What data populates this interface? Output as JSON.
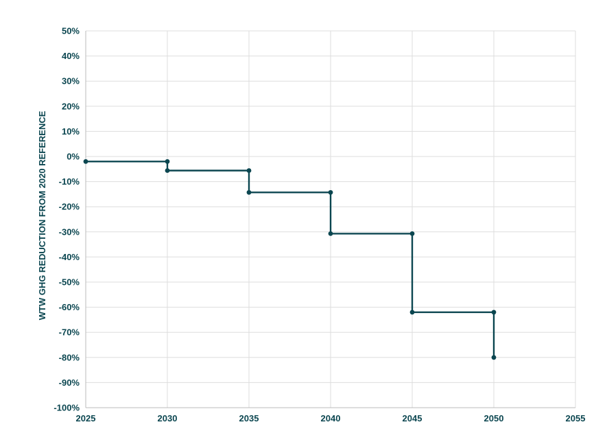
{
  "chart_data": {
    "type": "line",
    "title": "",
    "xlabel": "",
    "ylabel": "WTW GHG REDUCTION FROM 2020 REFERENCE",
    "xlim": [
      2025,
      2055
    ],
    "ylim": [
      -100,
      50
    ],
    "x_ticks": [
      2025,
      2030,
      2035,
      2040,
      2045,
      2050,
      2055
    ],
    "x_tick_labels": [
      "2025",
      "2030",
      "2035",
      "2040",
      "2045",
      "2050",
      "2055"
    ],
    "y_ticks": [
      50,
      40,
      30,
      20,
      10,
      0,
      -10,
      -20,
      -30,
      -40,
      -50,
      -60,
      -70,
      -80,
      -90,
      -100
    ],
    "y_tick_labels": [
      "50%",
      "40%",
      "30%",
      "20%",
      "10%",
      "0%",
      "-10%",
      "-20%",
      "-30%",
      "-40%",
      "-50%",
      "-60%",
      "-70%",
      "-80%",
      "-90%",
      "-100%"
    ],
    "grid": true,
    "series": [
      {
        "x": [
          2025,
          2030,
          2030,
          2035,
          2035,
          2040,
          2040,
          2045,
          2045,
          2050,
          2050
        ],
        "y": [
          -2,
          -2,
          -5.6,
          -5.6,
          -14.3,
          -14.3,
          -30.7,
          -30.7,
          -62.0,
          -62.0,
          -80
        ]
      }
    ],
    "colors": {
      "line": "#0b4650",
      "text": "#0b4650",
      "grid": "#dddddd",
      "axis": "#bbbbbb"
    }
  }
}
